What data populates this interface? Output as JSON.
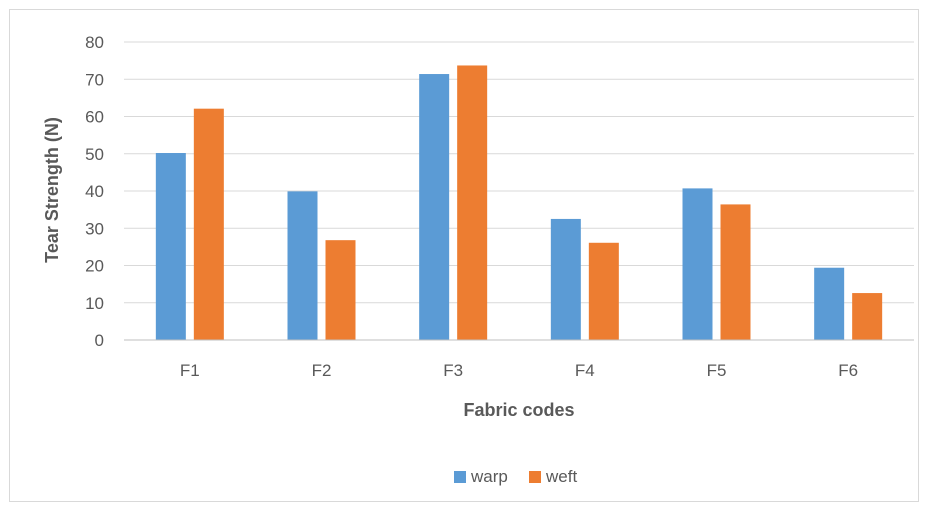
{
  "chart_data": {
    "type": "bar",
    "categories": [
      "F1",
      "F2",
      "F3",
      "F4",
      "F5",
      "F6"
    ],
    "series": [
      {
        "name": "warp",
        "color": "#5b9bd5",
        "values": [
          50.2,
          39.9,
          71.4,
          32.5,
          40.7,
          19.4
        ]
      },
      {
        "name": "weft",
        "color": "#ed7d31",
        "values": [
          62.1,
          26.8,
          73.7,
          26.1,
          36.4,
          12.6
        ]
      }
    ],
    "title": "",
    "xlabel": "Fabric codes",
    "ylabel": "Tear Strength (N)",
    "ylim": [
      0,
      80
    ],
    "yticks": [
      0,
      10,
      20,
      30,
      40,
      50,
      60,
      70,
      80
    ],
    "grid": true,
    "legend_position": "bottom"
  }
}
